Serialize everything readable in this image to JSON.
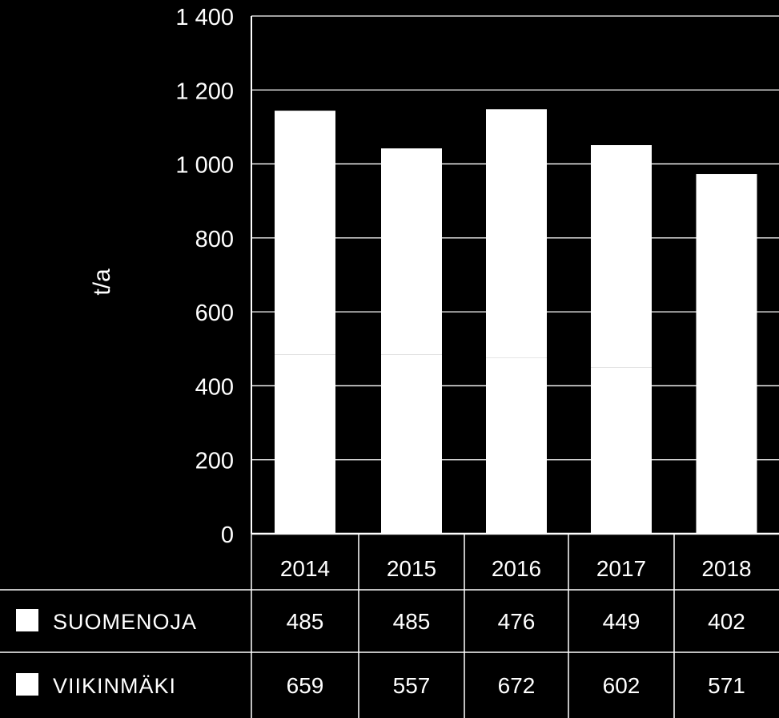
{
  "chart_data": {
    "type": "bar",
    "stacked": true,
    "ylabel": "t/a",
    "ylim": [
      0,
      1400
    ],
    "yticks": [
      "1 400",
      "1 200",
      "1 000",
      "800",
      "600",
      "400",
      "200",
      "0"
    ],
    "ytick_values": [
      1400,
      1200,
      1000,
      800,
      600,
      400,
      200,
      0
    ],
    "grid": true,
    "categories": [
      "2014",
      "2015",
      "2016",
      "2017",
      "2018"
    ],
    "series": [
      {
        "name": "SUOMENOJA",
        "values": [
          485,
          485,
          476,
          449,
          402
        ]
      },
      {
        "name": "VIIKINMÄKI",
        "values": [
          659,
          557,
          672,
          602,
          571
        ]
      }
    ],
    "colors": {
      "background": "#000000",
      "bars": "#ffffff",
      "grid": "#ffffff",
      "text": "#ffffff"
    }
  }
}
